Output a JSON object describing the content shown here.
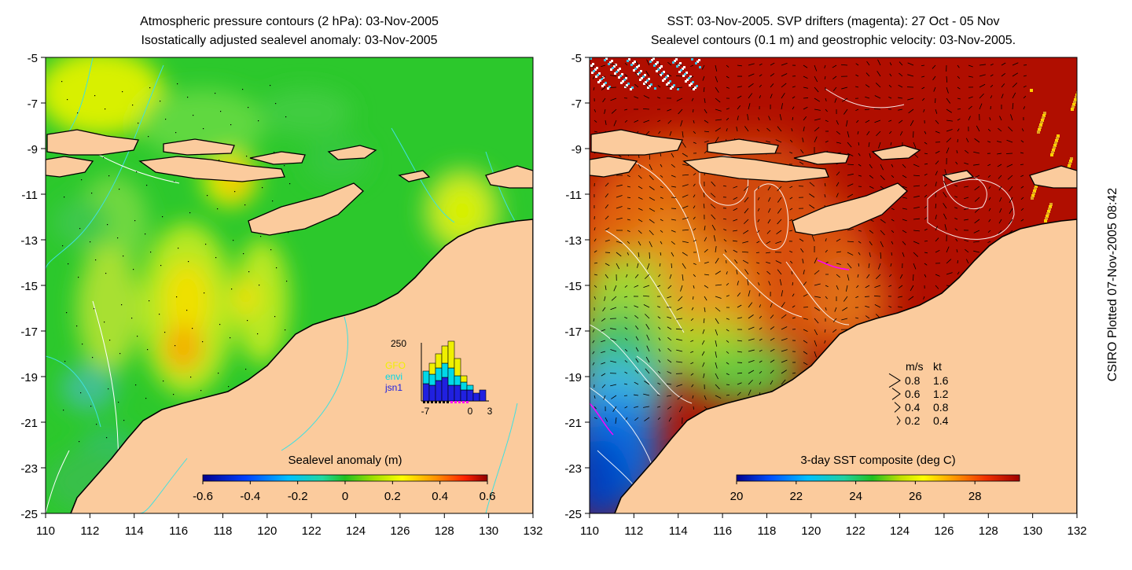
{
  "left_panel": {
    "title_line1": "Atmospheric pressure contours (2 hPa): 03-Nov-2005",
    "title_line2": "Isostatically adjusted sealevel anomaly: 03-Nov-2005",
    "x_ticks": [
      "110",
      "112",
      "114",
      "116",
      "118",
      "120",
      "122",
      "124",
      "126",
      "128",
      "130",
      "132"
    ],
    "y_ticks": [
      "-5",
      "-7",
      "-9",
      "-11",
      "-13",
      "-15",
      "-17",
      "-19",
      "-21",
      "-23",
      "-25"
    ],
    "colorbar": {
      "label": "Sealevel anomaly (m)",
      "ticks": [
        "-0.6",
        "-0.4",
        "-0.2",
        "0",
        "0.2",
        "0.4",
        "0.6"
      ],
      "range": [
        -0.6,
        0.6
      ]
    },
    "inset": {
      "y_max_label": "250",
      "x_tick_labels": [
        "-7",
        "0",
        "3"
      ],
      "legend": [
        {
          "name": "GFO",
          "color": "#f0f000"
        },
        {
          "name": "envi",
          "color": "#00d8e8"
        },
        {
          "name": "jsn1",
          "color": "#2020e0"
        }
      ]
    }
  },
  "right_panel": {
    "title_line1": "SST: 03-Nov-2005. SVP drifters (magenta): 27 Oct - 05 Nov",
    "title_line2": "Sealevel contours (0.1 m) and geostrophic velocity: 03-Nov-2005.",
    "x_ticks": [
      "110",
      "112",
      "114",
      "116",
      "118",
      "120",
      "122",
      "124",
      "126",
      "128",
      "130",
      "132"
    ],
    "y_ticks": [
      "-5",
      "-7",
      "-9",
      "-11",
      "-13",
      "-15",
      "-17",
      "-19",
      "-21",
      "-23",
      "-25"
    ],
    "colorbar": {
      "label": "3-day SST composite (deg C)",
      "ticks": [
        "20",
        "22",
        "24",
        "26",
        "28"
      ],
      "range": [
        20,
        29.5
      ]
    },
    "velocity_legend": {
      "header_ms": "m/s",
      "header_kt": "kt",
      "rows": [
        {
          "ms": "0.8",
          "kt": "1.6"
        },
        {
          "ms": "0.6",
          "kt": "1.2"
        },
        {
          "ms": "0.4",
          "kt": "0.8"
        },
        {
          "ms": "0.2",
          "kt": "0.4"
        }
      ]
    }
  },
  "credit": "CSIRO Plotted 07-Nov-2005 08:42",
  "colors": {
    "land": "#fbcb9d",
    "coast": "#000000",
    "pressure_contour": "#40e0e0",
    "sealevel_contour": "#ffffff",
    "drifter": "#ff00ff"
  }
}
